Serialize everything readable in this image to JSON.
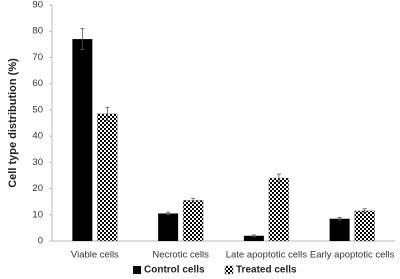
{
  "chart_data": {
    "type": "bar",
    "y_label": "Cell type distribution (%)",
    "categories": [
      "Viable cells",
      "Necrotic cells",
      "Late apoptotic cells",
      "Early apoptotic cells"
    ],
    "series": [
      {
        "name": "Control cells",
        "color": "#000000",
        "fill_pattern": "solid",
        "values": [
          77,
          10.5,
          2,
          8.5
        ],
        "errors": [
          4,
          0.5,
          0.3,
          0.5
        ]
      },
      {
        "name": "Treated cells",
        "color": "#000000",
        "fill_pattern": "checkerboard",
        "values": [
          48.5,
          15.5,
          24,
          11.5
        ],
        "errors": [
          2.5,
          0.8,
          1.5,
          0.8
        ]
      }
    ],
    "ylim": [
      0,
      90
    ],
    "yticks": [
      0,
      10,
      20,
      30,
      40,
      50,
      60,
      70,
      80,
      90
    ],
    "grid": false,
    "legend": "bottom"
  }
}
